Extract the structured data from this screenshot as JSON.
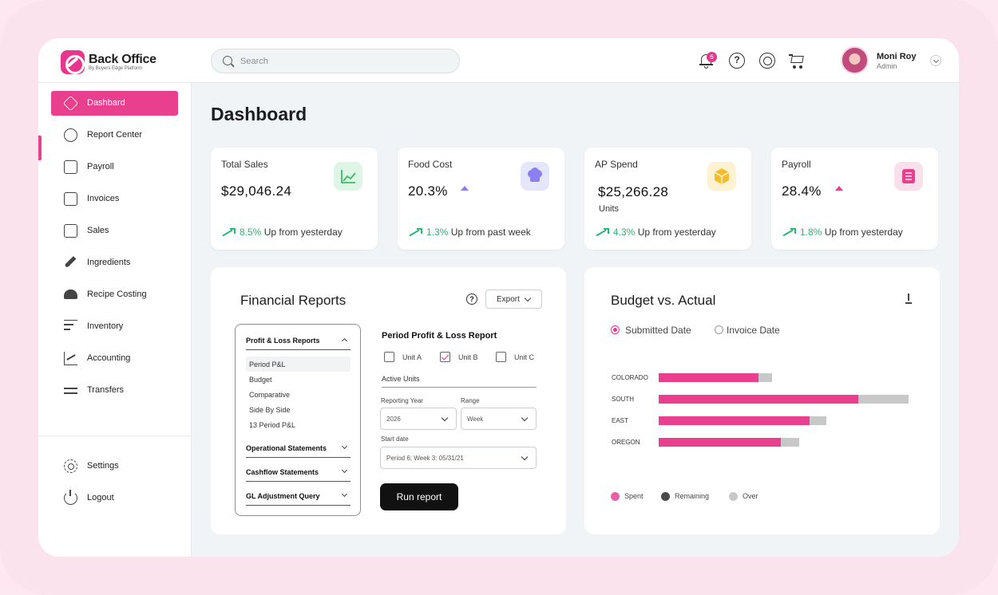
{
  "brand": {
    "name": "Back Office",
    "subtitle": "By Buyers Edge Platform"
  },
  "search": {
    "placeholder": "Search"
  },
  "notifications": {
    "count": "6"
  },
  "help": {
    "glyph": "?"
  },
  "user": {
    "name": "Moni Roy",
    "role": "Admin"
  },
  "sidebar": {
    "items": [
      {
        "label": "Dashbard",
        "icon": "layers-icon",
        "active": true
      },
      {
        "label": "Report Center",
        "icon": "pie-chart-icon"
      },
      {
        "label": "Payroll",
        "icon": "payroll-icon"
      },
      {
        "label": "Invoices",
        "icon": "invoice-icon"
      },
      {
        "label": "Sales",
        "icon": "cash-register-icon"
      },
      {
        "label": "Ingredients",
        "icon": "carrot-icon"
      },
      {
        "label": "Recipe Costing",
        "icon": "chef-hat-icon"
      },
      {
        "label": "Inventory",
        "icon": "list-add-icon"
      },
      {
        "label": "Accounting",
        "icon": "line-chart-icon"
      },
      {
        "label": "Transfers",
        "icon": "arrows-icon"
      }
    ],
    "footer": [
      {
        "label": "Settings",
        "icon": "gear-icon"
      },
      {
        "label": "Logout",
        "icon": "power-icon"
      }
    ]
  },
  "page": {
    "title": "Dashboard"
  },
  "kpis": [
    {
      "title": "Total Sales",
      "value": "$29,046.24",
      "trend_pct": "8.5%",
      "trend_text": "Up from yesterday",
      "icon": "line-chart-icon",
      "icon_bg": "#dff5e6",
      "icon_color": "#3dbb6b"
    },
    {
      "title": "Food Cost",
      "value": "20.3%",
      "trend_pct": "1.3%",
      "trend_text": "Up from past week",
      "icon": "chef-hat-icon",
      "icon_bg": "#e6e6fb",
      "icon_color": "#8b7ff2",
      "triangle_color": "#8b7ff2"
    },
    {
      "title": "AP Spend",
      "value": "$25,266.28",
      "unit": "Units",
      "trend_pct": "4.3%",
      "trend_text": "Up from yesterday",
      "icon": "box-icon",
      "icon_bg": "#fdf2d2",
      "icon_color": "#f5bd2a"
    },
    {
      "title": "Payroll",
      "value": "28.4%",
      "trend_pct": "1.8%",
      "trend_text": "Up from yesterday",
      "icon": "payroll-icon",
      "icon_bg": "#fbe0ec",
      "icon_color": "#ea3e8e",
      "triangle_color": "#ea3e8e"
    }
  ],
  "financial_reports": {
    "title": "Financial Reports",
    "export_label": "Export",
    "menu": {
      "pl_group": "Profit & Loss Reports",
      "pl_items": [
        "Period P&L",
        "Budget",
        "Comparative",
        "Side By Side",
        "13 Period P&L"
      ],
      "other_groups": [
        "Operational Statements",
        "Cashflow Statements",
        "GL Adjustment Query"
      ]
    },
    "form": {
      "title": "Period Profit & Loss Report",
      "units": [
        {
          "label": "Unit A",
          "checked": false
        },
        {
          "label": "Unit B",
          "checked": true
        },
        {
          "label": "Unit C",
          "checked": false
        }
      ],
      "active_units_label": "Active Units",
      "reporting_year_label": "Reporting Year",
      "reporting_year_value": "2026",
      "range_label": "Range",
      "range_value": "Week",
      "start_date_label": "Start date",
      "start_date_value": "Period 6; Week 3: 05/31/21",
      "run_label": "Run report"
    }
  },
  "budget_vs_actual": {
    "title": "Budget vs. Actual",
    "radio_options": [
      {
        "label": "Submitted Date",
        "selected": true
      },
      {
        "label": "Invoice Date",
        "selected": false
      }
    ],
    "legend": [
      {
        "label": "Spent",
        "color": "#ee5fa7"
      },
      {
        "label": "Remaining",
        "color": "#4a4a4a"
      },
      {
        "label": "Over",
        "color": "#c8c8c8"
      }
    ]
  },
  "chart_data": {
    "type": "bar",
    "categories": [
      "COLORADO",
      "SOUTH",
      "EAST",
      "OREGON"
    ],
    "series": [
      {
        "name": "Spent",
        "values": [
          125,
          250,
          189,
          153
        ],
        "color": "#ea3e8e"
      },
      {
        "name": "Over",
        "values": [
          17,
          63,
          21,
          23
        ],
        "color": "#c8c8c8"
      }
    ],
    "stacked": true,
    "xlim": [
      0,
      320
    ],
    "grid": false,
    "legend": "bottom"
  }
}
